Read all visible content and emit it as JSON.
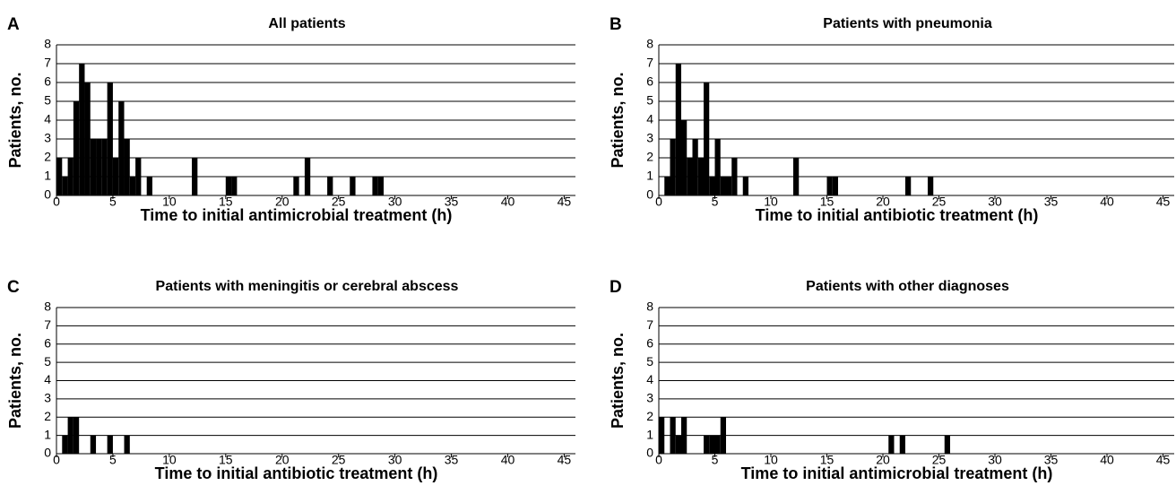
{
  "chart_data": [
    {
      "type": "histogram",
      "panel": "A",
      "title": "All patients",
      "xlabel": "Time to initial antimicrobial treatment (h)",
      "ylabel": "Patients, no.",
      "color": "#000000",
      "grid": true,
      "bins": [
        0,
        0.5,
        1,
        1.5,
        2,
        2.5,
        3,
        3.5,
        4,
        4.5,
        5,
        5.5,
        6,
        6.5,
        7,
        7.5,
        8,
        8.5,
        9,
        9.5,
        10,
        10.5,
        11,
        11.5,
        12,
        12.5,
        13,
        13.5,
        14,
        14.5,
        15,
        15.5,
        16,
        16.5,
        17,
        17.5,
        18,
        18.5,
        19,
        19.5,
        20,
        20.5,
        21,
        21.5,
        22,
        22.5,
        23,
        23.5,
        24,
        24.5,
        25,
        25.5,
        26,
        26.5,
        27,
        27.5,
        28,
        28.5,
        29,
        29.5,
        30
      ],
      "values": [
        2,
        1,
        2,
        5,
        7,
        6,
        3,
        3,
        3,
        6,
        2,
        5,
        3,
        1,
        2,
        0,
        1,
        0,
        0,
        0,
        0,
        0,
        0,
        0,
        2,
        0,
        0,
        0,
        0,
        0,
        1,
        1,
        0,
        0,
        0,
        0,
        0,
        0,
        0,
        0,
        0,
        0,
        1,
        0,
        2,
        0,
        0,
        0,
        1,
        0,
        0,
        0,
        1,
        0,
        0,
        0,
        1,
        1,
        0,
        0
      ],
      "xlim": [
        0,
        46
      ],
      "xticks": [
        0,
        5,
        10,
        15,
        20,
        25,
        30,
        35,
        40,
        45
      ],
      "ylim": [
        0,
        8
      ],
      "yticks": [
        0,
        1,
        2,
        3,
        4,
        5,
        6,
        7,
        8
      ]
    },
    {
      "type": "histogram",
      "panel": "B",
      "title": "Patients with pneumonia",
      "xlabel": "Time to initial antibiotic treatment (h)",
      "ylabel": "Patients, no.",
      "color": "#000000",
      "grid": true,
      "bins": [
        0,
        0.5,
        1,
        1.5,
        2,
        2.5,
        3,
        3.5,
        4,
        4.5,
        5,
        5.5,
        6,
        6.5,
        7,
        7.5,
        8,
        8.5,
        9,
        9.5,
        10,
        10.5,
        11,
        11.5,
        12,
        12.5,
        13,
        13.5,
        14,
        14.5,
        15,
        15.5,
        16,
        16.5,
        17,
        17.5,
        18,
        18.5,
        19,
        19.5,
        20,
        20.5,
        21,
        21.5,
        22,
        22.5,
        23,
        23.5,
        24,
        24.5,
        25,
        25.5,
        26,
        26.5,
        27,
        27.5,
        28,
        28.5,
        29,
        29.5,
        30
      ],
      "values": [
        0,
        1,
        3,
        7,
        4,
        2,
        3,
        2,
        6,
        1,
        3,
        1,
        1,
        2,
        0,
        1,
        0,
        0,
        0,
        0,
        0,
        0,
        0,
        0,
        2,
        0,
        0,
        0,
        0,
        0,
        1,
        1,
        0,
        0,
        0,
        0,
        0,
        0,
        0,
        0,
        0,
        0,
        0,
        0,
        1,
        0,
        0,
        0,
        1,
        0,
        0,
        0,
        0,
        0,
        0,
        0,
        0,
        0,
        0,
        0
      ],
      "xlim": [
        0,
        46
      ],
      "xticks": [
        0,
        5,
        10,
        15,
        20,
        25,
        30,
        35,
        40,
        45
      ],
      "ylim": [
        0,
        8
      ],
      "yticks": [
        0,
        1,
        2,
        3,
        4,
        5,
        6,
        7,
        8
      ]
    },
    {
      "type": "histogram",
      "panel": "C",
      "title": "Patients with meningitis or cerebral abscess",
      "xlabel": "Time to initial antibiotic treatment (h)",
      "ylabel": "Patients, no.",
      "color": "#000000",
      "grid": true,
      "bins": [
        0,
        0.5,
        1,
        1.5,
        2,
        2.5,
        3,
        3.5,
        4,
        4.5,
        5,
        5.5,
        6,
        6.5,
        7,
        7.5,
        8,
        8.5,
        9,
        9.5,
        10,
        10.5,
        11,
        11.5,
        12,
        12.5,
        13,
        13.5,
        14,
        14.5,
        15,
        15.5,
        16,
        16.5,
        17,
        17.5,
        18,
        18.5,
        19,
        19.5,
        20,
        20.5,
        21,
        21.5,
        22,
        22.5,
        23,
        23.5,
        24,
        24.5,
        25,
        25.5,
        26,
        26.5,
        27,
        27.5,
        28,
        28.5,
        29,
        29.5,
        30
      ],
      "values": [
        0,
        1,
        2,
        2,
        0,
        0,
        1,
        0,
        0,
        1,
        0,
        0,
        1,
        0,
        0,
        0,
        0,
        0,
        0,
        0,
        0,
        0,
        0,
        0,
        0,
        0,
        0,
        0,
        0,
        0,
        0,
        0,
        0,
        0,
        0,
        0,
        0,
        0,
        0,
        0,
        0,
        0,
        0,
        0,
        0,
        0,
        0,
        0,
        0,
        0,
        0,
        0,
        0,
        0,
        0,
        0,
        0,
        0,
        0,
        0
      ],
      "xlim": [
        0,
        46
      ],
      "xticks": [
        0,
        5,
        10,
        15,
        20,
        25,
        30,
        35,
        40,
        45
      ],
      "ylim": [
        0,
        8
      ],
      "yticks": [
        0,
        1,
        2,
        3,
        4,
        5,
        6,
        7,
        8
      ]
    },
    {
      "type": "histogram",
      "panel": "D",
      "title": "Patients with other diagnoses",
      "xlabel": "Time to initial antimicrobial treatment (h)",
      "ylabel": "Patients, no.",
      "color": "#000000",
      "grid": true,
      "bins": [
        0,
        0.5,
        1,
        1.5,
        2,
        2.5,
        3,
        3.5,
        4,
        4.5,
        5,
        5.5,
        6,
        6.5,
        7,
        7.5,
        8,
        8.5,
        9,
        9.5,
        10,
        10.5,
        11,
        11.5,
        12,
        12.5,
        13,
        13.5,
        14,
        14.5,
        15,
        15.5,
        16,
        16.5,
        17,
        17.5,
        18,
        18.5,
        19,
        19.5,
        20,
        20.5,
        21,
        21.5,
        22,
        22.5,
        23,
        23.5,
        24,
        24.5,
        25,
        25.5,
        26,
        26.5,
        27,
        27.5,
        28,
        28.5,
        29,
        29.5,
        30
      ],
      "values": [
        2,
        0,
        2,
        1,
        2,
        0,
        0,
        0,
        1,
        1,
        1,
        2,
        0,
        0,
        0,
        0,
        0,
        0,
        0,
        0,
        0,
        0,
        0,
        0,
        0,
        0,
        0,
        0,
        0,
        0,
        0,
        0,
        0,
        0,
        0,
        0,
        0,
        0,
        0,
        0,
        0,
        1,
        0,
        1,
        0,
        0,
        0,
        0,
        0,
        0,
        0,
        1,
        0,
        0,
        0,
        0,
        0,
        0,
        0,
        0
      ],
      "xlim": [
        0,
        46
      ],
      "xticks": [
        0,
        5,
        10,
        15,
        20,
        25,
        30,
        35,
        40,
        45
      ],
      "ylim": [
        0,
        8
      ],
      "yticks": [
        0,
        1,
        2,
        3,
        4,
        5,
        6,
        7,
        8
      ]
    }
  ]
}
